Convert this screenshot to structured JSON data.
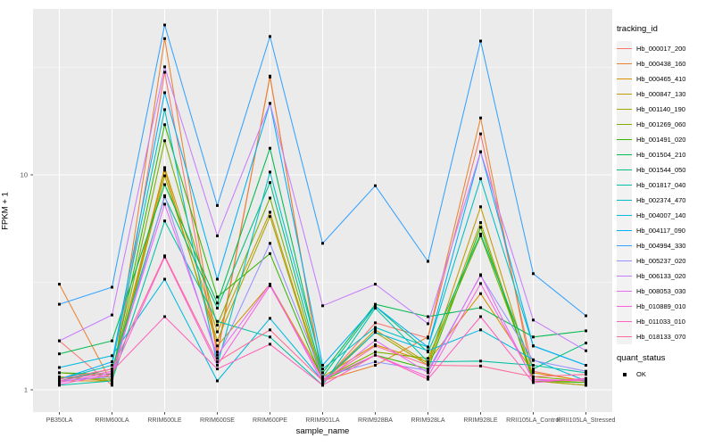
{
  "figure": {
    "colors": {
      "panel_bg": "#EBEBEB",
      "grid_major": "#FFFFFF",
      "grid_minor": "#FFFFFF",
      "tick_text": "#4D4D4D",
      "axis_tick": "#333333",
      "point": "#000000",
      "legend_key_bg": "#F2F2F2"
    }
  },
  "legend": {
    "tracking_title": "tracking_id",
    "quant_title": "quant_status",
    "quant_items": [
      {
        "label": "OK",
        "marker": "black-square"
      }
    ]
  },
  "chart_data": {
    "type": "line",
    "title": "",
    "xlabel": "sample_name",
    "ylabel": "FPKM + 1",
    "scale_y": "log10",
    "ylim": [
      0.93,
      59
    ],
    "grid": true,
    "legend_position": "right",
    "marker": "black-square (quant_status = OK)",
    "yticks": [
      {
        "value": 1,
        "label": "1"
      },
      {
        "value": 10,
        "label": "10"
      }
    ],
    "y_minor_gridlines": [
      3.162,
      31.623
    ],
    "categories": [
      "PB350LA",
      "RRIM600LA",
      "RRIM600LE",
      "RRIM600SE",
      "RRIM600PE",
      "RRIM901LA",
      "RRIM928BA",
      "RRIM928LA",
      "RRIM928LE",
      "RRII105LA_Control",
      "RRII105LA_Stressed"
    ],
    "series": [
      {
        "name": "Hb_000017_200",
        "color": "#F8766D",
        "values": [
          1.69,
          1.05,
          30.0,
          1.45,
          28.8,
          1.08,
          2.05,
          1.74,
          15.5,
          1.22,
          1.09
        ]
      },
      {
        "name": "Hb_000438_160",
        "color": "#EA8331",
        "values": [
          3.1,
          1.07,
          43.0,
          1.5,
          28.5,
          1.1,
          1.3,
          1.76,
          18.4,
          1.1,
          1.05
        ]
      },
      {
        "name": "Hb_000465_410",
        "color": "#D89000",
        "values": [
          1.1,
          1.1,
          10.5,
          1.6,
          3.1,
          1.15,
          1.62,
          1.35,
          2.8,
          1.2,
          1.1
        ]
      },
      {
        "name": "Hb_000847_130",
        "color": "#C09B00",
        "values": [
          1.2,
          1.15,
          10.8,
          1.86,
          6.7,
          1.1,
          1.9,
          1.33,
          7.1,
          1.12,
          1.08
        ]
      },
      {
        "name": "Hb_001140_190",
        "color": "#A3A500",
        "values": [
          1.15,
          1.1,
          9.9,
          1.7,
          6.4,
          1.08,
          1.85,
          1.3,
          6.0,
          1.1,
          1.05
        ]
      },
      {
        "name": "Hb_001269_060",
        "color": "#7CAE00",
        "values": [
          1.14,
          1.12,
          14.4,
          2.0,
          7.8,
          1.12,
          1.5,
          1.4,
          5.2,
          1.15,
          1.1
        ]
      },
      {
        "name": "Hb_001491_020",
        "color": "#39B600",
        "values": [
          1.2,
          1.18,
          17.1,
          2.7,
          4.3,
          1.1,
          1.45,
          1.25,
          5.7,
          1.1,
          1.08
        ]
      },
      {
        "name": "Hb_001504_210",
        "color": "#00BB4E",
        "values": [
          1.47,
          1.69,
          9.0,
          2.53,
          13.3,
          1.2,
          2.5,
          2.19,
          2.41,
          1.76,
          1.88
        ]
      },
      {
        "name": "Hb_001544_050",
        "color": "#00BF7D",
        "values": [
          1.1,
          1.25,
          7.9,
          2.4,
          9.2,
          1.15,
          2.45,
          1.5,
          5.3,
          1.25,
          1.65
        ]
      },
      {
        "name": "Hb_001817_040",
        "color": "#00C1A3",
        "values": [
          1.05,
          1.1,
          6.1,
          2.08,
          1.76,
          1.05,
          2.4,
          1.35,
          1.36,
          1.3,
          1.2
        ]
      },
      {
        "name": "Hb_002374_470",
        "color": "#00BFC4",
        "values": [
          1.12,
          1.3,
          20.1,
          1.3,
          10.3,
          1.25,
          1.95,
          1.58,
          9.6,
          1.6,
          1.3
        ]
      },
      {
        "name": "Hb_004007_140",
        "color": "#00BAE0",
        "values": [
          1.27,
          1.44,
          3.27,
          1.1,
          2.15,
          1.1,
          1.85,
          1.52,
          1.9,
          1.38,
          1.1
        ]
      },
      {
        "name": "Hb_004117_090",
        "color": "#00B0F6",
        "values": [
          1.12,
          1.35,
          24.1,
          3.27,
          21.5,
          1.3,
          2.45,
          1.58,
          12.8,
          1.6,
          1.3
        ]
      },
      {
        "name": "Hb_004994_330",
        "color": "#35A2FF",
        "values": [
          2.5,
          3.0,
          49.8,
          7.2,
          44.0,
          4.8,
          8.9,
          3.96,
          41.9,
          3.47,
          2.21
        ]
      },
      {
        "name": "Hb_005237_020",
        "color": "#9590FF",
        "values": [
          1.1,
          1.15,
          8.0,
          1.4,
          4.8,
          1.15,
          1.35,
          1.23,
          3.4,
          1.37,
          1.22
        ]
      },
      {
        "name": "Hb_006133_020",
        "color": "#C77CFF",
        "values": [
          1.69,
          2.23,
          31.8,
          5.2,
          21.5,
          2.46,
          3.1,
          2.03,
          12.8,
          2.11,
          1.52
        ]
      },
      {
        "name": "Hb_008053_030",
        "color": "#E76BF3",
        "values": [
          1.08,
          1.2,
          7.3,
          1.45,
          3.1,
          1.08,
          1.7,
          1.2,
          3.43,
          1.1,
          1.12
        ]
      },
      {
        "name": "Hb_010889_010",
        "color": "#FA62DB",
        "values": [
          1.06,
          1.18,
          4.15,
          1.3,
          3.05,
          1.12,
          1.45,
          1.15,
          3.12,
          1.12,
          1.1
        ]
      },
      {
        "name": "Hb_011033_010",
        "color": "#FF62BC",
        "values": [
          1.1,
          1.22,
          2.19,
          1.25,
          1.63,
          1.05,
          1.45,
          1.12,
          2.19,
          1.08,
          1.13
        ]
      },
      {
        "name": "Hb_018133_070",
        "color": "#FF6A98",
        "values": [
          1.12,
          1.25,
          4.2,
          1.35,
          1.9,
          1.1,
          1.6,
          1.3,
          1.29,
          1.15,
          1.18
        ]
      }
    ]
  }
}
